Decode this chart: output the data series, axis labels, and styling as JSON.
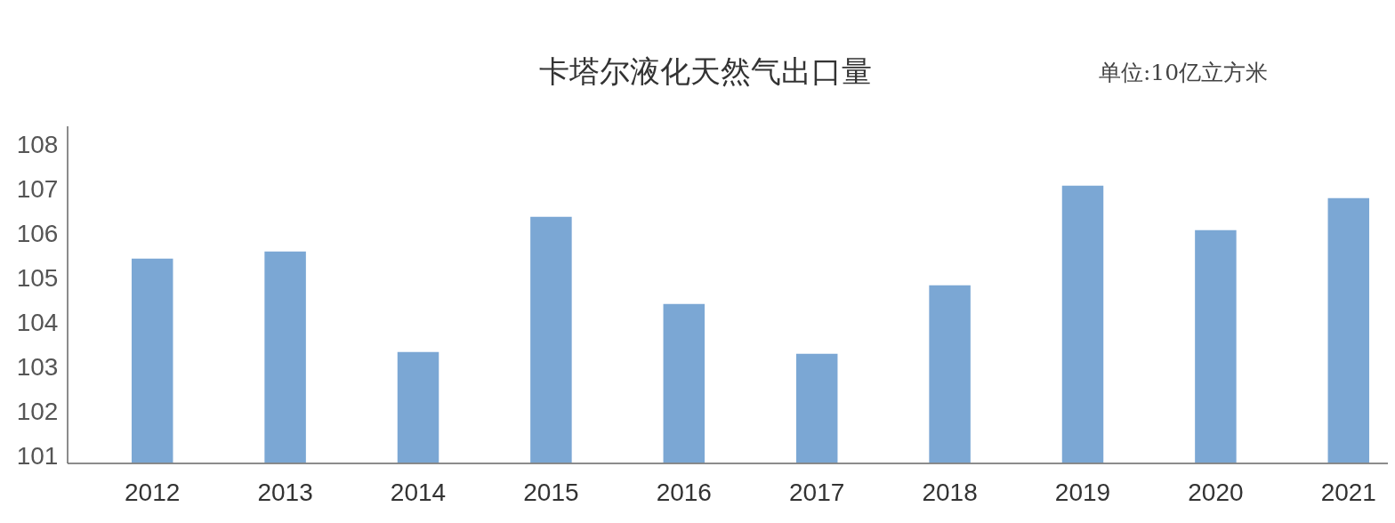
{
  "chart_data": {
    "type": "bar",
    "title": "卡塔尔液化天然气出口量",
    "annotations": [
      "单位:10亿立方米"
    ],
    "categories": [
      "2012",
      "2013",
      "2014",
      "2015",
      "2016",
      "2017",
      "2018",
      "2019",
      "2020",
      "2021"
    ],
    "values": [
      105.44,
      105.6,
      103.34,
      106.38,
      104.42,
      103.3,
      104.84,
      107.08,
      106.08,
      106.8
    ],
    "color": "#7ba7d4",
    "ylim": [
      100.82,
      108.4
    ],
    "yticks": [
      101,
      102,
      103,
      104,
      105,
      106,
      107,
      108
    ],
    "grid": false
  }
}
